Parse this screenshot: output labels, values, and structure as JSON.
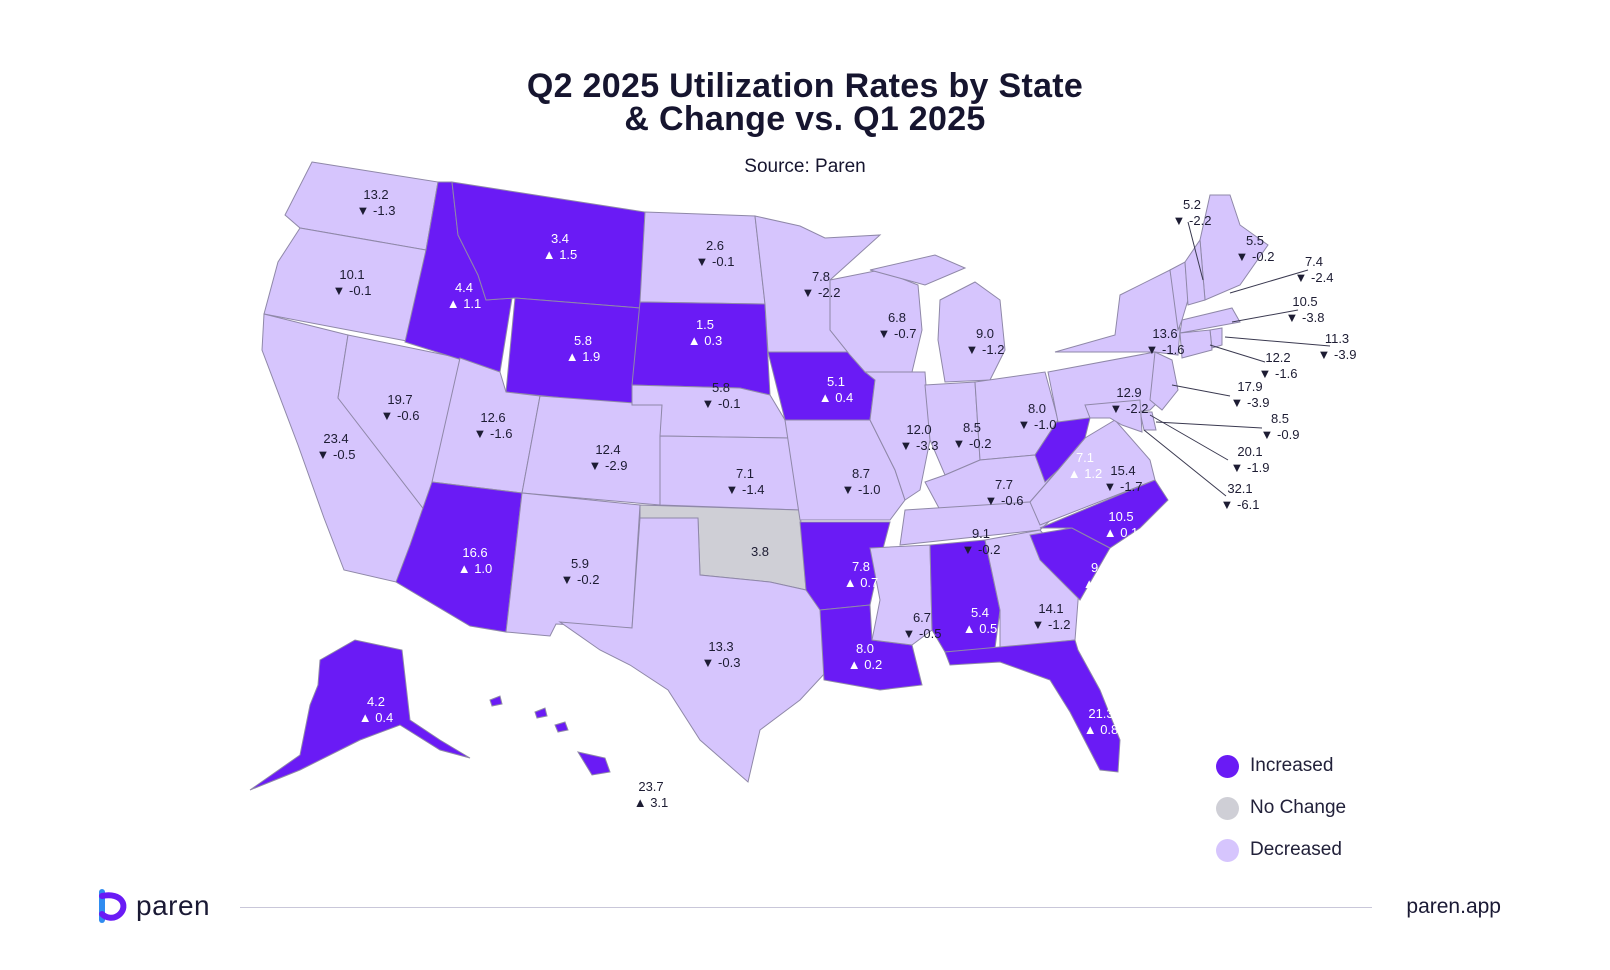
{
  "header": {
    "title_line1": "Q2 2025 Utilization Rates by State",
    "title_line2": "& Change vs. Q1 2025",
    "subtitle": "Source: Paren"
  },
  "colors": {
    "increased": "#6a1bf5",
    "no_change": "#cfcfd6",
    "decreased": "#d6c5fd",
    "border": "#8f88a8"
  },
  "legend": [
    {
      "label": "Increased",
      "status": "increased"
    },
    {
      "label": "No Change",
      "status": "no_change"
    },
    {
      "label": "Decreased",
      "status": "decreased"
    }
  ],
  "states": [
    {
      "abbr": "WA",
      "value": "13.2",
      "change": "-1.3",
      "status": "decreased"
    },
    {
      "abbr": "OR",
      "value": "10.1",
      "change": "-0.1",
      "status": "decreased"
    },
    {
      "abbr": "CA",
      "value": "23.4",
      "change": "-0.5",
      "status": "decreased"
    },
    {
      "abbr": "NV",
      "value": "19.7",
      "change": "-0.6",
      "status": "decreased"
    },
    {
      "abbr": "ID",
      "value": "4.4",
      "change": "1.1",
      "status": "increased"
    },
    {
      "abbr": "MT",
      "value": "3.4",
      "change": "1.5",
      "status": "increased"
    },
    {
      "abbr": "WY",
      "value": "5.8",
      "change": "1.9",
      "status": "increased"
    },
    {
      "abbr": "UT",
      "value": "12.6",
      "change": "-1.6",
      "status": "decreased"
    },
    {
      "abbr": "AZ",
      "value": "16.6",
      "change": "1.0",
      "status": "increased"
    },
    {
      "abbr": "CO",
      "value": "12.4",
      "change": "-2.9",
      "status": "decreased"
    },
    {
      "abbr": "NM",
      "value": "5.9",
      "change": "-0.2",
      "status": "decreased"
    },
    {
      "abbr": "ND",
      "value": "2.6",
      "change": "-0.1",
      "status": "decreased"
    },
    {
      "abbr": "SD",
      "value": "1.5",
      "change": "0.3",
      "status": "increased"
    },
    {
      "abbr": "NE",
      "value": "5.8",
      "change": "-0.1",
      "status": "decreased"
    },
    {
      "abbr": "KS",
      "value": "7.1",
      "change": "-1.4",
      "status": "decreased"
    },
    {
      "abbr": "OK",
      "value": "3.8",
      "change": "",
      "status": "no_change"
    },
    {
      "abbr": "TX",
      "value": "13.3",
      "change": "-0.3",
      "status": "decreased"
    },
    {
      "abbr": "MN",
      "value": "7.8",
      "change": "-2.2",
      "status": "decreased"
    },
    {
      "abbr": "IA",
      "value": "5.1",
      "change": "0.4",
      "status": "increased"
    },
    {
      "abbr": "MO",
      "value": "8.7",
      "change": "-1.0",
      "status": "decreased"
    },
    {
      "abbr": "AR",
      "value": "7.8",
      "change": "0.7",
      "status": "increased"
    },
    {
      "abbr": "LA",
      "value": "8.0",
      "change": "0.2",
      "status": "increased"
    },
    {
      "abbr": "WI",
      "value": "6.8",
      "change": "-0.7",
      "status": "decreased"
    },
    {
      "abbr": "IL",
      "value": "12.0",
      "change": "-3.3",
      "status": "decreased"
    },
    {
      "abbr": "MI",
      "value": "9.0",
      "change": "-1.2",
      "status": "decreased"
    },
    {
      "abbr": "IN",
      "value": "8.5",
      "change": "-0.2",
      "status": "decreased"
    },
    {
      "abbr": "OH",
      "value": "8.0",
      "change": "-1.0",
      "status": "decreased"
    },
    {
      "abbr": "KY",
      "value": "7.7",
      "change": "-0.6",
      "status": "decreased"
    },
    {
      "abbr": "TN",
      "value": "9.1",
      "change": "-0.2",
      "status": "decreased"
    },
    {
      "abbr": "MS",
      "value": "6.7",
      "change": "-0.5",
      "status": "decreased"
    },
    {
      "abbr": "AL",
      "value": "5.4",
      "change": "0.5",
      "status": "increased"
    },
    {
      "abbr": "GA",
      "value": "14.1",
      "change": "-1.2",
      "status": "decreased"
    },
    {
      "abbr": "FL",
      "value": "21.3",
      "change": "0.8",
      "status": "increased"
    },
    {
      "abbr": "SC",
      "value": "9.9",
      "change": "0.5",
      "status": "increased"
    },
    {
      "abbr": "NC",
      "value": "10.5",
      "change": "0.1",
      "status": "increased"
    },
    {
      "abbr": "VA",
      "value": "15.4",
      "change": "-1.7",
      "status": "decreased"
    },
    {
      "abbr": "WV",
      "value": "7.1",
      "change": "1.2",
      "status": "increased"
    },
    {
      "abbr": "PA",
      "value": "12.9",
      "change": "-2.2",
      "status": "decreased"
    },
    {
      "abbr": "NY",
      "value": "13.6",
      "change": "-1.6",
      "status": "decreased"
    },
    {
      "abbr": "VT",
      "value": "5.2",
      "change": "-2.2",
      "status": "decreased"
    },
    {
      "abbr": "ME",
      "value": "5.5",
      "change": "-0.2",
      "status": "decreased"
    },
    {
      "abbr": "NH",
      "value": "7.4",
      "change": "-2.4",
      "status": "decreased"
    },
    {
      "abbr": "MA",
      "value": "10.5",
      "change": "-3.8",
      "status": "decreased"
    },
    {
      "abbr": "RI",
      "value": "11.3",
      "change": "-3.9",
      "status": "decreased"
    },
    {
      "abbr": "CT",
      "value": "12.2",
      "change": "-1.6",
      "status": "decreased"
    },
    {
      "abbr": "NJ",
      "value": "17.9",
      "change": "-3.9",
      "status": "decreased"
    },
    {
      "abbr": "DE",
      "value": "8.5",
      "change": "-0.9",
      "status": "decreased"
    },
    {
      "abbr": "MD",
      "value": "20.1",
      "change": "-1.9",
      "status": "decreased"
    },
    {
      "abbr": "DC",
      "value": "32.1",
      "change": "-6.1",
      "status": "decreased"
    },
    {
      "abbr": "AK",
      "value": "4.2",
      "change": "0.4",
      "status": "increased"
    },
    {
      "abbr": "HI",
      "value": "23.7",
      "change": "3.1",
      "status": "increased"
    }
  ],
  "footer": {
    "brand": "paren",
    "site": "paren.app"
  }
}
